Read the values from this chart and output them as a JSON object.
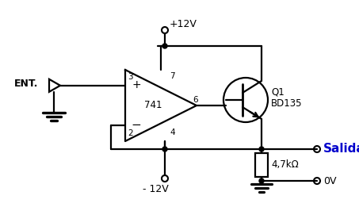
{
  "bg_color": "#ffffff",
  "line_color": "#000000",
  "salida_color": "#0000cc",
  "fig_width": 4.53,
  "fig_height": 2.66,
  "dpi": 100,
  "label_ent": "ENT.",
  "label_741": "741",
  "label_plus": "+",
  "label_minus": "−",
  "label_pin3": "3",
  "label_pin2": "2",
  "label_pin7": "7",
  "label_pin6": "6",
  "label_pin4": "4",
  "label_q1": "Q1",
  "label_bd135": "BD135",
  "label_resistor": "4,7kΩ",
  "label_vplus": "+12V",
  "label_vminus": "- 12V",
  "label_salida": "Salida",
  "label_0v": "0V"
}
